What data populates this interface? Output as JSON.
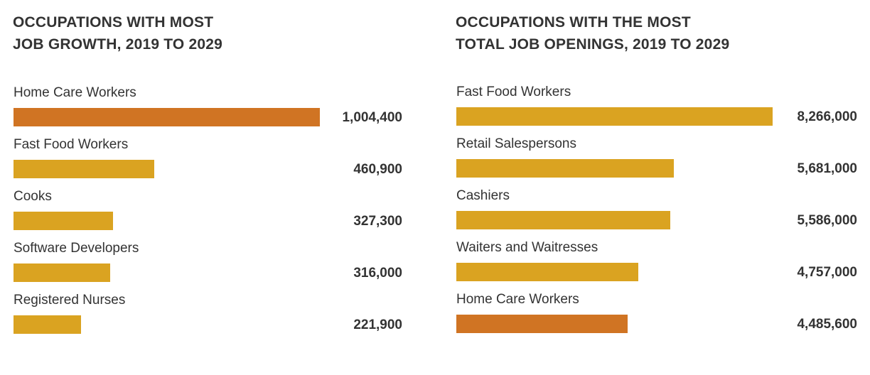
{
  "colors": {
    "highlight": "#D07423",
    "default": "#DAA321",
    "text": "#333333"
  },
  "chart_data": [
    {
      "type": "bar",
      "orientation": "horizontal",
      "title": "OCCUPATIONS WITH MOST JOB GROWTH, 2019 TO 2029",
      "title_lines": [
        "OCCUPATIONS WITH MOST",
        "JOB GROWTH, 2019 TO 2029"
      ],
      "categories": [
        "Home Care Workers",
        "Fast Food Workers",
        "Cooks",
        "Software Developers",
        "Registered Nurses"
      ],
      "values": [
        1004400,
        460900,
        327300,
        316000,
        221900
      ],
      "value_labels": [
        "1,004,400",
        "460,900",
        "327,300",
        "316,000",
        "221,900"
      ],
      "highlight": [
        "Home Care Workers"
      ],
      "xlim": [
        0,
        1004400
      ]
    },
    {
      "type": "bar",
      "orientation": "horizontal",
      "title": "OCCUPATIONS WITH THE MOST TOTAL JOB OPENINGS, 2019 TO 2029",
      "title_lines": [
        "OCCUPATIONS WITH THE MOST",
        "TOTAL JOB OPENINGS, 2019 TO 2029"
      ],
      "categories": [
        "Fast Food Workers",
        "Retail Salespersons",
        "Cashiers",
        "Waiters and Waitresses",
        "Home Care Workers"
      ],
      "values": [
        8266000,
        5681000,
        5586000,
        4757000,
        4485600
      ],
      "value_labels": [
        "8,266,000",
        "5,681,000",
        "5,586,000",
        "4,757,000",
        "4,485,600"
      ],
      "highlight": [
        "Home Care Workers"
      ],
      "xlim": [
        0,
        8266000
      ]
    }
  ]
}
